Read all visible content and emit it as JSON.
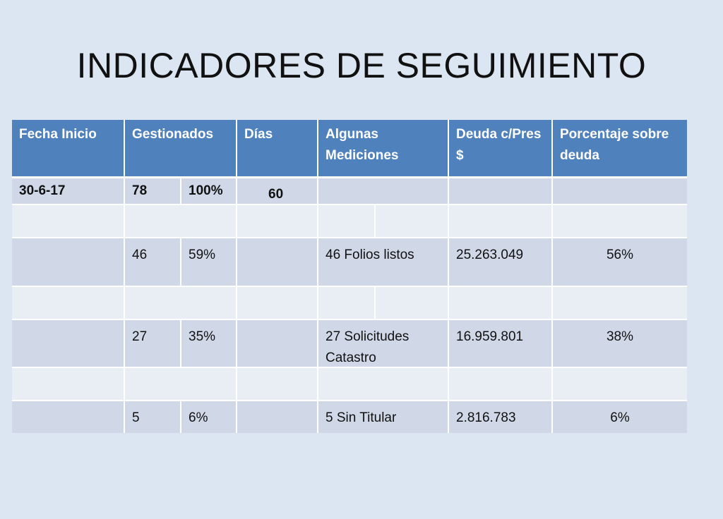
{
  "title": "INDICADORES DE SEGUIMIENTO",
  "table": {
    "headers": {
      "fecha_inicio": "Fecha Inicio",
      "gestionados": "Gestionados",
      "dias": "Días",
      "mediciones": "Algunas Mediciones",
      "deuda": "Deuda c/Pres $",
      "porcentaje": "Porcentaje sobre deuda"
    },
    "row1": {
      "fecha": "30-6-17",
      "cantidad": "78",
      "pct": "100%",
      "dias": "60"
    },
    "row3": {
      "cantidad": "46",
      "pct": "59%",
      "medicion": "46 Folios listos",
      "deuda": "25.263.049",
      "pct_deuda": "56%"
    },
    "row5": {
      "cantidad": "27",
      "pct": "35%",
      "medicion": "27 Solicitudes Catastro",
      "deuda": "16.959.801",
      "pct_deuda": "38%"
    },
    "row7": {
      "cantidad": "5",
      "pct": "6%",
      "medicion": "5 Sin Titular",
      "deuda": "2.816.783",
      "pct_deuda": "6%"
    }
  },
  "colors": {
    "header": "#4f81bd",
    "row_dark": "#d0d8e8",
    "row_light": "#e9edf4",
    "background": "#dce6f2"
  }
}
